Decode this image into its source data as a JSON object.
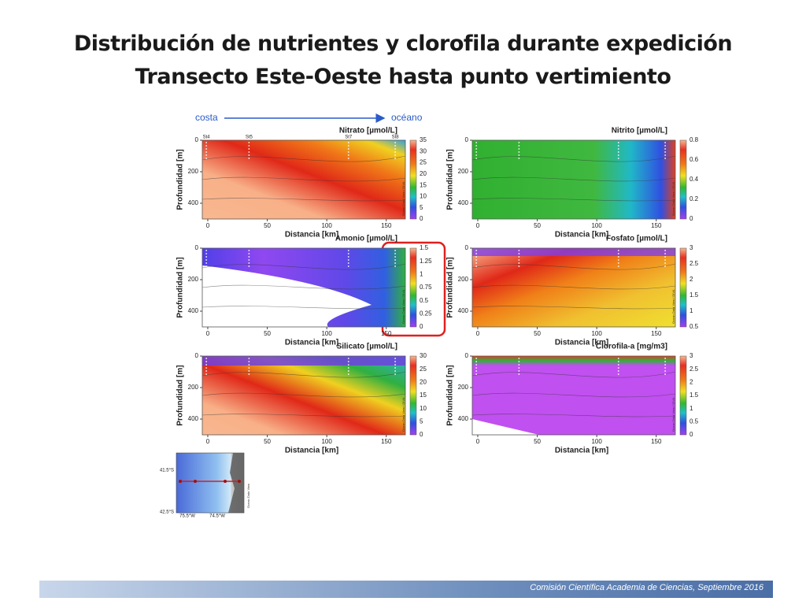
{
  "title": [
    "Distribución de nutrientes y clorofila durante expedición",
    "Transecto Este-Oeste hasta punto vertimiento"
  ],
  "direction": [
    "costa",
    "océano"
  ],
  "panels": [
    {
      "title": "Nitrato [µmol/L]",
      "x_label": "Distancia [km]",
      "y_label": "Profundidad [m]",
      "x_ticks": [
        "0",
        "50",
        "100",
        "150"
      ],
      "y_ticks": [
        "0",
        "200",
        "400"
      ],
      "colorbar_ticks": [
        "0",
        "5",
        "10",
        "15",
        "20",
        "25",
        "30",
        "35"
      ],
      "stations": [
        "St4",
        "St5",
        "St7",
        "St8"
      ],
      "watermark": "Ocean Data View / DIVA"
    },
    {
      "title": "Nitrito [µmol/L]",
      "x_label": "Distancia [km]",
      "y_label": "Profundidad [m]",
      "x_ticks": [
        "0",
        "50",
        "100",
        "150"
      ],
      "y_ticks": [
        "0",
        "200",
        "400"
      ],
      "colorbar_ticks": [
        "0",
        "0.2",
        "0.4",
        "0.6",
        "0.8"
      ],
      "watermark": "Ocean Data View / DIVA"
    },
    {
      "title": "Amonio [µmol/L]",
      "x_label": "Distancia [km]",
      "y_label": "Profundidad [m]",
      "x_ticks": [
        "0",
        "50",
        "100",
        "150"
      ],
      "y_ticks": [
        "0",
        "200",
        "400"
      ],
      "colorbar_ticks": [
        "0",
        "0.25",
        "0.5",
        "0.75",
        "1",
        "1.25",
        "1.5"
      ],
      "watermark": "Ocean Data View / DIVA"
    },
    {
      "title": "Fosfato [µmol/L]",
      "x_label": "Distancia [km]",
      "y_label": "Profundidad [m]",
      "x_ticks": [
        "0",
        "50",
        "100",
        "150"
      ],
      "y_ticks": [
        "0",
        "200",
        "400"
      ],
      "colorbar_ticks": [
        "0.5",
        "1",
        "1.5",
        "2",
        "2.5",
        "3"
      ],
      "watermark": "Ocean Data View / DIVA"
    },
    {
      "title": "Silicato [µmol/L]",
      "x_label": "Distancia [km]",
      "y_label": "Profundidad [m]",
      "x_ticks": [
        "0",
        "50",
        "100",
        "150"
      ],
      "y_ticks": [
        "0",
        "200",
        "400"
      ],
      "colorbar_ticks": [
        "0",
        "5",
        "10",
        "15",
        "20",
        "25",
        "30"
      ],
      "watermark": "Ocean Data View / DIVA"
    },
    {
      "title": "Clorofila-a [mg/m3]",
      "x_label": "Distancia [km]",
      "y_label": "Profundidad [m]",
      "x_ticks": [
        "0",
        "50",
        "100",
        "150"
      ],
      "y_ticks": [
        "0",
        "200",
        "400"
      ],
      "colorbar_ticks": [
        "0",
        "0.5",
        "1",
        "1.5",
        "2",
        "2.5",
        "3"
      ],
      "watermark": "Ocean Data View / DIVA"
    }
  ],
  "map": {
    "lat_labels": [
      "41.5°S",
      "42.5°S"
    ],
    "lon_labels": [
      "75.5°W",
      "74.5°W"
    ],
    "watermark": "Ocean Data View"
  },
  "footer": "Comisión Científica Academia de Ciencias, Septiembre 2016"
}
